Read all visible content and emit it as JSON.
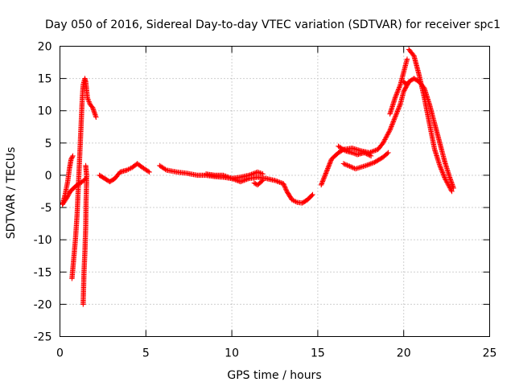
{
  "chart_data": {
    "type": "scatter",
    "title": "Day 050 of 2016, Sidereal Day-to-day VTEC variation (SDTVAR) for receiver spc1",
    "xlabel": "GPS time / hours",
    "ylabel": "SDTVAR / TECUs",
    "xlim": [
      0,
      25
    ],
    "ylim": [
      -25,
      20
    ],
    "xticks": [
      0,
      5,
      10,
      15,
      20,
      25
    ],
    "yticks": [
      -25,
      -20,
      -15,
      -10,
      -5,
      0,
      5,
      10,
      15,
      20
    ],
    "xtick_labels": [
      "0",
      "5",
      "10",
      "15",
      "20",
      "25"
    ],
    "ytick_labels": [
      "-25",
      "-20",
      "-15",
      "-10",
      "-5",
      "0",
      "5",
      "10",
      "15",
      "20"
    ],
    "grid": true,
    "marker": "+",
    "series": [
      {
        "name": "spc1",
        "color": "#ff0000",
        "segments": [
          [
            [
              0.15,
              -4.5
            ],
            [
              0.3,
              -3
            ],
            [
              0.45,
              -1
            ],
            [
              0.55,
              1
            ],
            [
              0.65,
              2.5
            ],
            [
              0.75,
              3
            ]
          ],
          [
            [
              0.15,
              -4.5
            ],
            [
              0.4,
              -3.5
            ],
            [
              0.6,
              -2.5
            ],
            [
              0.8,
              -2
            ],
            [
              1.0,
              -1.5
            ],
            [
              1.2,
              -1.2
            ],
            [
              1.4,
              -0.8
            ],
            [
              1.5,
              -0.5
            ]
          ],
          [
            [
              0.7,
              -16
            ],
            [
              0.8,
              -13
            ],
            [
              0.9,
              -10
            ],
            [
              1.0,
              -6
            ],
            [
              1.05,
              -3
            ],
            [
              1.1,
              0
            ],
            [
              1.15,
              3
            ],
            [
              1.2,
              6
            ],
            [
              1.25,
              9
            ],
            [
              1.3,
              12
            ],
            [
              1.35,
              14
            ],
            [
              1.45,
              15
            ],
            [
              1.5,
              14.5
            ],
            [
              1.6,
              12
            ],
            [
              1.75,
              11
            ],
            [
              1.9,
              10.5
            ],
            [
              2.1,
              9
            ]
          ],
          [
            [
              1.35,
              -20
            ],
            [
              1.4,
              -15
            ],
            [
              1.45,
              -12
            ],
            [
              1.5,
              -8
            ],
            [
              1.52,
              -4
            ],
            [
              1.55,
              -1
            ],
            [
              1.55,
              0
            ],
            [
              1.5,
              1.5
            ]
          ],
          [
            [
              2.3,
              0
            ],
            [
              2.6,
              -0.5
            ],
            [
              2.9,
              -1
            ],
            [
              3.2,
              -0.5
            ],
            [
              3.5,
              0.5
            ],
            [
              3.9,
              0.8
            ],
            [
              4.2,
              1.2
            ],
            [
              4.5,
              1.8
            ],
            [
              4.8,
              1.2
            ],
            [
              5.2,
              0.5
            ]
          ],
          [
            [
              5.8,
              1.5
            ],
            [
              6.2,
              0.8
            ],
            [
              6.8,
              0.5
            ],
            [
              7.4,
              0.3
            ],
            [
              8,
              0
            ],
            [
              8.5,
              0
            ],
            [
              9,
              -0.2
            ],
            [
              9.5,
              -0.3
            ],
            [
              10,
              -0.5
            ],
            [
              10.5,
              -0.3
            ],
            [
              11,
              0
            ],
            [
              11.5,
              0.5
            ],
            [
              11.8,
              0.2
            ]
          ],
          [
            [
              8.5,
              0.2
            ],
            [
              9,
              0
            ],
            [
              9.5,
              0
            ],
            [
              10,
              -0.5
            ],
            [
              10.5,
              -1
            ],
            [
              11,
              -0.5
            ],
            [
              11.5,
              -0.3
            ],
            [
              12,
              -0.5
            ],
            [
              12.5,
              -0.8
            ],
            [
              13,
              -1.3
            ],
            [
              13.2,
              -2.5
            ],
            [
              13.5,
              -3.8
            ],
            [
              13.8,
              -4.2
            ],
            [
              14.1,
              -4.3
            ],
            [
              14.4,
              -3.8
            ],
            [
              14.7,
              -3
            ]
          ],
          [
            [
              11.3,
              -1.2
            ],
            [
              11.5,
              -1.5
            ],
            [
              11.8,
              -0.8
            ]
          ],
          [
            [
              15.2,
              -1.5
            ],
            [
              15.5,
              0.5
            ],
            [
              15.8,
              2.5
            ],
            [
              16.2,
              3.5
            ],
            [
              16.5,
              4
            ],
            [
              17,
              4.2
            ],
            [
              17.5,
              3.8
            ],
            [
              18,
              3.5
            ],
            [
              18.5,
              4
            ],
            [
              18.8,
              5
            ],
            [
              19.2,
              7
            ],
            [
              19.5,
              9
            ],
            [
              19.8,
              11
            ],
            [
              20,
              13
            ],
            [
              20.3,
              14.5
            ],
            [
              20.6,
              15
            ],
            [
              20.9,
              14.5
            ],
            [
              21.2,
              13.5
            ],
            [
              21.5,
              11
            ],
            [
              21.8,
              8
            ],
            [
              22.1,
              5
            ],
            [
              22.4,
              2
            ],
            [
              22.7,
              -0.5
            ],
            [
              22.9,
              -2
            ]
          ],
          [
            [
              16.5,
              1.8
            ],
            [
              17.2,
              1
            ],
            [
              17.8,
              1.5
            ],
            [
              18.3,
              2
            ],
            [
              18.8,
              2.8
            ],
            [
              19.1,
              3.5
            ]
          ],
          [
            [
              16.2,
              4.5
            ],
            [
              16.6,
              3.8
            ],
            [
              17,
              3.5
            ],
            [
              17.3,
              3.2
            ],
            [
              17.7,
              3.5
            ],
            [
              18.1,
              3
            ]
          ],
          [
            [
              19.2,
              9.5
            ],
            [
              19.5,
              12
            ],
            [
              19.8,
              14
            ],
            [
              20,
              16
            ],
            [
              20.2,
              18
            ]
          ],
          [
            [
              20.3,
              19.5
            ],
            [
              20.6,
              18.5
            ],
            [
              20.9,
              15.5
            ],
            [
              21.2,
              12
            ],
            [
              21.5,
              8
            ],
            [
              21.8,
              4
            ],
            [
              22.1,
              1.5
            ],
            [
              22.4,
              -0.5
            ],
            [
              22.8,
              -2.5
            ]
          ],
          [
            [
              20,
              14.5
            ],
            [
              20.2,
              14
            ]
          ]
        ]
      }
    ]
  }
}
